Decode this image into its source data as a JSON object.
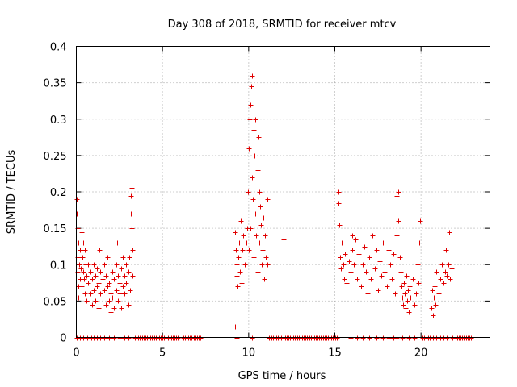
{
  "chart_data": {
    "type": "scatter",
    "title": "Day 308 of 2018, SRMTID for receiver mtcv",
    "xlabel": "GPS time / hours",
    "ylabel": "SRMTID / TECUs",
    "xlim": [
      0,
      24
    ],
    "ylim": [
      0,
      0.4
    ],
    "x_ticks": [
      0,
      5,
      10,
      15,
      20
    ],
    "x_tick_labels": [
      "0",
      "5",
      "10",
      "15",
      "20"
    ],
    "y_ticks": [
      0,
      0.05,
      0.1,
      0.15,
      0.2,
      0.25,
      0.3,
      0.35,
      0.4
    ],
    "y_tick_labels": [
      "0",
      "0.05",
      "0.1",
      "0.15",
      "0.2",
      "0.25",
      "0.3",
      "0.35",
      "0.4"
    ],
    "grid": true,
    "marker": "+",
    "color": "#e00000",
    "series": [
      {
        "name": "SRMTID",
        "points": [
          [
            0.0,
            0.19
          ],
          [
            0.02,
            0.17
          ],
          [
            0.05,
            0.15
          ],
          [
            0.05,
            0.11
          ],
          [
            0.08,
            0.09
          ],
          [
            0.1,
            0.07
          ],
          [
            0.1,
            0.13
          ],
          [
            0.12,
            0.055
          ],
          [
            0.15,
            0.1
          ],
          [
            0.2,
            0.08
          ],
          [
            0.2,
            0.12
          ],
          [
            0.25,
            0.095
          ],
          [
            0.3,
            0.07
          ],
          [
            0.3,
            0.145
          ],
          [
            0.35,
            0.11
          ],
          [
            0.4,
            0.13
          ],
          [
            0.4,
            0.09
          ],
          [
            0.45,
            0.08
          ],
          [
            0.5,
            0.12
          ],
          [
            0.5,
            0.06
          ],
          [
            0.55,
            0.1
          ],
          [
            0.6,
            0.05
          ],
          [
            0.6,
            0.085
          ],
          [
            0.7,
            0.075
          ],
          [
            0.7,
            0.1
          ],
          [
            0.8,
            0.06
          ],
          [
            0.8,
            0.09
          ],
          [
            0.9,
            0.045
          ],
          [
            0.9,
            0.08
          ],
          [
            1.0,
            0.1
          ],
          [
            1.0,
            0.065
          ],
          [
            1.1,
            0.05
          ],
          [
            1.1,
            0.085
          ],
          [
            1.2,
            0.07
          ],
          [
            1.2,
            0.095
          ],
          [
            1.3,
            0.04
          ],
          [
            1.3,
            0.075
          ],
          [
            1.35,
            0.12
          ],
          [
            1.4,
            0.06
          ],
          [
            1.4,
            0.09
          ],
          [
            1.5,
            0.055
          ],
          [
            1.5,
            0.08
          ],
          [
            1.6,
            0.1
          ],
          [
            1.6,
            0.065
          ],
          [
            1.7,
            0.045
          ],
          [
            1.7,
            0.085
          ],
          [
            1.8,
            0.07
          ],
          [
            1.8,
            0.11
          ],
          [
            1.9,
            0.05
          ],
          [
            1.9,
            0.075
          ],
          [
            2.0,
            0.035
          ],
          [
            2.0,
            0.06
          ],
          [
            2.1,
            0.09
          ],
          [
            2.1,
            0.055
          ],
          [
            2.2,
            0.08
          ],
          [
            2.2,
            0.04
          ],
          [
            2.3,
            0.065
          ],
          [
            2.3,
            0.1
          ],
          [
            2.35,
            0.13
          ],
          [
            2.4,
            0.05
          ],
          [
            2.4,
            0.085
          ],
          [
            2.5,
            0.06
          ],
          [
            2.5,
            0.075
          ],
          [
            2.6,
            0.04
          ],
          [
            2.6,
            0.095
          ],
          [
            2.7,
            0.11
          ],
          [
            2.7,
            0.07
          ],
          [
            2.75,
            0.13
          ],
          [
            2.8,
            0.085
          ],
          [
            2.8,
            0.06
          ],
          [
            2.9,
            0.1
          ],
          [
            2.9,
            0.075
          ],
          [
            3.0,
            0.045
          ],
          [
            3.0,
            0.09
          ],
          [
            3.05,
            0.11
          ],
          [
            3.1,
            0.065
          ],
          [
            3.15,
            0.17
          ],
          [
            3.15,
            0.195
          ],
          [
            3.2,
            0.205
          ],
          [
            3.2,
            0.15
          ],
          [
            3.25,
            0.12
          ],
          [
            3.25,
            0.085
          ],
          [
            9.2,
            0.015
          ],
          [
            9.2,
            0.145
          ],
          [
            9.25,
            0.12
          ],
          [
            9.3,
            0.085
          ],
          [
            9.3,
            0.1
          ],
          [
            9.35,
            0.07
          ],
          [
            9.4,
            0.11
          ],
          [
            9.45,
            0.13
          ],
          [
            9.5,
            0.09
          ],
          [
            9.55,
            0.16
          ],
          [
            9.6,
            0.075
          ],
          [
            9.65,
            0.12
          ],
          [
            9.7,
            0.14
          ],
          [
            9.75,
            0.1
          ],
          [
            9.8,
            0.17
          ],
          [
            9.85,
            0.13
          ],
          [
            9.9,
            0.15
          ],
          [
            9.95,
            0.2
          ],
          [
            10.0,
            0.12
          ],
          [
            10.0,
            0.26
          ],
          [
            10.05,
            0.3
          ],
          [
            10.1,
            0.32
          ],
          [
            10.1,
            0.15
          ],
          [
            10.15,
            0.345
          ],
          [
            10.2,
            0.36
          ],
          [
            10.2,
            0.22
          ],
          [
            10.25,
            0.19
          ],
          [
            10.3,
            0.285
          ],
          [
            10.3,
            0.11
          ],
          [
            10.35,
            0.25
          ],
          [
            10.4,
            0.3
          ],
          [
            10.4,
            0.17
          ],
          [
            10.45,
            0.14
          ],
          [
            10.5,
            0.23
          ],
          [
            10.5,
            0.09
          ],
          [
            10.55,
            0.275
          ],
          [
            10.6,
            0.2
          ],
          [
            10.6,
            0.13
          ],
          [
            10.65,
            0.18
          ],
          [
            10.7,
            0.155
          ],
          [
            10.75,
            0.1
          ],
          [
            10.8,
            0.21
          ],
          [
            10.8,
            0.12
          ],
          [
            10.85,
            0.165
          ],
          [
            10.9,
            0.08
          ],
          [
            10.95,
            0.14
          ],
          [
            11.0,
            0.11
          ],
          [
            11.05,
            0.13
          ],
          [
            11.1,
            0.19
          ],
          [
            11.1,
            0.1
          ],
          [
            12.0,
            0.135
          ],
          [
            15.2,
            0.185
          ],
          [
            15.2,
            0.2
          ],
          [
            15.25,
            0.155
          ],
          [
            15.3,
            0.11
          ],
          [
            15.35,
            0.095
          ],
          [
            15.4,
            0.13
          ],
          [
            15.5,
            0.1
          ],
          [
            15.55,
            0.08
          ],
          [
            15.6,
            0.115
          ],
          [
            15.7,
            0.075
          ],
          [
            15.8,
            0.105
          ],
          [
            15.9,
            0.09
          ],
          [
            16.0,
            0.14
          ],
          [
            16.0,
            0.12
          ],
          [
            16.1,
            0.1
          ],
          [
            16.2,
            0.135
          ],
          [
            16.3,
            0.08
          ],
          [
            16.4,
            0.115
          ],
          [
            16.5,
            0.07
          ],
          [
            16.6,
            0.1
          ],
          [
            16.7,
            0.125
          ],
          [
            16.8,
            0.09
          ],
          [
            16.9,
            0.06
          ],
          [
            17.0,
            0.11
          ],
          [
            17.1,
            0.08
          ],
          [
            17.2,
            0.14
          ],
          [
            17.3,
            0.095
          ],
          [
            17.4,
            0.12
          ],
          [
            17.5,
            0.065
          ],
          [
            17.6,
            0.105
          ],
          [
            17.7,
            0.085
          ],
          [
            17.8,
            0.13
          ],
          [
            17.9,
            0.09
          ],
          [
            18.0,
            0.07
          ],
          [
            18.1,
            0.12
          ],
          [
            18.2,
            0.1
          ],
          [
            18.3,
            0.08
          ],
          [
            18.4,
            0.115
          ],
          [
            18.5,
            0.06
          ],
          [
            18.6,
            0.14
          ],
          [
            18.6,
            0.195
          ],
          [
            18.7,
            0.2
          ],
          [
            18.7,
            0.16
          ],
          [
            18.75,
            0.11
          ],
          [
            18.8,
            0.09
          ],
          [
            18.85,
            0.07
          ],
          [
            18.9,
            0.055
          ],
          [
            18.95,
            0.045
          ],
          [
            19.0,
            0.075
          ],
          [
            19.05,
            0.06
          ],
          [
            19.1,
            0.04
          ],
          [
            19.15,
            0.085
          ],
          [
            19.2,
            0.05
          ],
          [
            19.25,
            0.065
          ],
          [
            19.3,
            0.035
          ],
          [
            19.35,
            0.07
          ],
          [
            19.4,
            0.055
          ],
          [
            19.5,
            0.08
          ],
          [
            19.6,
            0.045
          ],
          [
            19.7,
            0.06
          ],
          [
            19.8,
            0.1
          ],
          [
            19.85,
            0.075
          ],
          [
            19.9,
            0.13
          ],
          [
            19.95,
            0.16
          ],
          [
            20.6,
            0.04
          ],
          [
            20.65,
            0.065
          ],
          [
            20.7,
            0.03
          ],
          [
            20.75,
            0.055
          ],
          [
            20.8,
            0.07
          ],
          [
            20.85,
            0.045
          ],
          [
            20.9,
            0.09
          ],
          [
            21.0,
            0.06
          ],
          [
            21.1,
            0.08
          ],
          [
            21.2,
            0.1
          ],
          [
            21.3,
            0.075
          ],
          [
            21.4,
            0.09
          ],
          [
            21.45,
            0.12
          ],
          [
            21.5,
            0.085
          ],
          [
            21.55,
            0.13
          ],
          [
            21.6,
            0.1
          ],
          [
            21.65,
            0.145
          ],
          [
            21.7,
            0.08
          ],
          [
            21.75,
            0.095
          ]
        ],
        "zeros": [
          0.02,
          0.2,
          0.4,
          0.65,
          0.85,
          1.0,
          1.2,
          1.4,
          1.6,
          1.9,
          2.0,
          2.2,
          2.5,
          2.8,
          3.0,
          3.4,
          3.5,
          3.6,
          3.7,
          3.8,
          3.9,
          4.0,
          4.1,
          4.2,
          4.3,
          4.4,
          4.5,
          4.6,
          4.7,
          4.8,
          4.9,
          5.0,
          5.1,
          5.2,
          5.3,
          5.4,
          5.5,
          5.6,
          5.7,
          5.8,
          5.9,
          6.2,
          6.3,
          6.4,
          6.5,
          6.6,
          6.7,
          6.8,
          6.9,
          7.0,
          7.1,
          7.2,
          9.3,
          10.2,
          11.2,
          11.3,
          11.4,
          11.5,
          11.6,
          11.7,
          11.8,
          11.9,
          12.0,
          12.1,
          12.2,
          12.3,
          12.4,
          12.5,
          12.6,
          12.7,
          12.8,
          12.9,
          13.0,
          13.1,
          13.2,
          13.3,
          13.4,
          13.5,
          13.6,
          13.7,
          13.8,
          13.9,
          14.0,
          14.1,
          14.2,
          14.3,
          14.4,
          14.5,
          14.6,
          14.7,
          14.8,
          14.9,
          15.0,
          15.1,
          15.9,
          16.3,
          16.6,
          17.0,
          17.4,
          17.8,
          18.1,
          18.4,
          18.6,
          18.9,
          19.3,
          19.6,
          20.1,
          20.2,
          20.3,
          20.4,
          20.5,
          20.7,
          20.9,
          21.1,
          21.3,
          21.5,
          21.8,
          22.0,
          22.1,
          22.2,
          22.3,
          22.4,
          22.5,
          22.6,
          22.7,
          22.8,
          22.9
        ]
      }
    ]
  }
}
